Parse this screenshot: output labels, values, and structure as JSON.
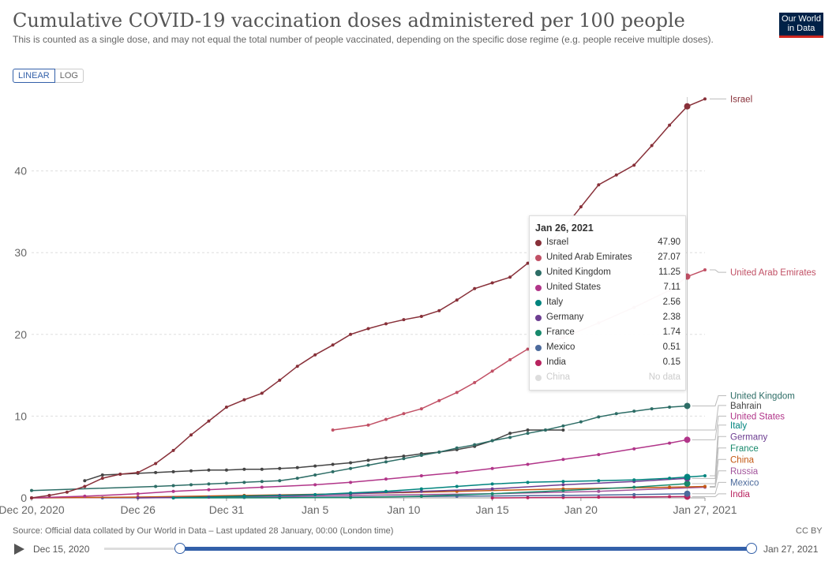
{
  "header": {
    "title": "Cumulative COVID-19 vaccination doses administered per 100 people",
    "subtitle": "This is counted as a single dose, and may not equal the total number of people vaccinated, depending on the specific dose regime (e.g. people receive multiple doses).",
    "logo_line1": "Our World",
    "logo_line2": "in Data"
  },
  "scale_toggle": {
    "linear": "LINEAR",
    "log": "LOG"
  },
  "footer": {
    "source": "Source: Official data collated by Our World in Data – Last updated 28 January, 00:00 (London time)",
    "license": "CC BY"
  },
  "timeline": {
    "start_label": "Dec 15, 2020",
    "end_label": "Jan 27, 2021",
    "range_start_day": 5,
    "range_end_day": 43
  },
  "tooltip": {
    "date": "Jan 26, 2021",
    "rows": [
      {
        "name": "Israel",
        "value": "47.90",
        "color": "#883039"
      },
      {
        "name": "United Arab Emirates",
        "value": "27.07",
        "color": "#c15065"
      },
      {
        "name": "United Kingdom",
        "value": "11.25",
        "color": "#2d6d66"
      },
      {
        "name": "United States",
        "value": "7.11",
        "color": "#b13589"
      },
      {
        "name": "Italy",
        "value": "2.56",
        "color": "#00847e"
      },
      {
        "name": "Germany",
        "value": "2.38",
        "color": "#6d3e91"
      },
      {
        "name": "France",
        "value": "1.74",
        "color": "#18896c"
      },
      {
        "name": "Mexico",
        "value": "0.51",
        "color": "#4c6a9c"
      },
      {
        "name": "India",
        "value": "0.15",
        "color": "#b8235f"
      },
      {
        "name": "China",
        "value": "No data",
        "color": "#dddddd"
      }
    ]
  },
  "chart_data": {
    "type": "line",
    "title": "Cumulative COVID-19 vaccination doses administered per 100 people",
    "x_unit": "days since Dec 20, 2020",
    "xlim": [
      0,
      38
    ],
    "ylim": [
      0,
      50
    ],
    "y_ticks": [
      0,
      10,
      20,
      30,
      40
    ],
    "y_tick_labels": [
      "0",
      "10",
      "20",
      "30",
      "40"
    ],
    "x_ticks": [
      0,
      6,
      11,
      16,
      21,
      26,
      31,
      38
    ],
    "x_tick_labels": [
      "Dec 20, 2020",
      "Dec 26",
      "Dec 31",
      "Jan 5",
      "Jan 10",
      "Jan 15",
      "Jan 20",
      "Jan 27, 2021"
    ],
    "hover_day": 37,
    "grid": true,
    "legend": "right",
    "series": [
      {
        "name": "Israel",
        "color": "#883039",
        "label_y": 48.8,
        "x": [
          0,
          1,
          2,
          3,
          4,
          5,
          6,
          7,
          8,
          9,
          10,
          11,
          12,
          13,
          14,
          15,
          16,
          17,
          18,
          19,
          20,
          21,
          22,
          23,
          24,
          25,
          26,
          27,
          28,
          29,
          30,
          31,
          32,
          33,
          34,
          35,
          36,
          37,
          38
        ],
        "y": [
          0,
          0.3,
          0.7,
          1.4,
          2.4,
          2.9,
          3.1,
          4.2,
          5.8,
          7.7,
          9.4,
          11.1,
          12.0,
          12.8,
          14.4,
          16.1,
          17.5,
          18.7,
          20.0,
          20.7,
          21.3,
          21.8,
          22.2,
          22.9,
          24.2,
          25.6,
          26.3,
          27.0,
          28.7,
          30.6,
          32.9,
          35.6,
          38.3,
          39.5,
          40.7,
          43.1,
          45.6,
          47.9,
          48.8
        ]
      },
      {
        "name": "United Arab Emirates",
        "color": "#c15065",
        "label_y": 27.6,
        "x": [
          17,
          19,
          20,
          21,
          22,
          23,
          24,
          25,
          26,
          27,
          28,
          30,
          32,
          34,
          36,
          37,
          38
        ],
        "y": [
          8.3,
          8.9,
          9.6,
          10.3,
          10.9,
          11.9,
          12.9,
          14.1,
          15.5,
          16.9,
          18.2,
          19.6,
          21.4,
          23.3,
          25.4,
          27.07,
          27.9
        ]
      },
      {
        "name": "United Kingdom",
        "color": "#2d6d66",
        "label_y": 12.5,
        "x": [
          0,
          7,
          8,
          9,
          10,
          11,
          12,
          13,
          14,
          15,
          16,
          17,
          18,
          19,
          20,
          21,
          22,
          23,
          24,
          25,
          26,
          27,
          28,
          29,
          30,
          31,
          32,
          33,
          34,
          35,
          36,
          37
        ],
        "y": [
          0.9,
          1.4,
          1.5,
          1.6,
          1.7,
          1.8,
          1.9,
          2.0,
          2.1,
          2.4,
          2.8,
          3.2,
          3.6,
          4.0,
          4.4,
          4.8,
          5.2,
          5.6,
          6.1,
          6.5,
          7.0,
          7.4,
          7.9,
          8.3,
          8.8,
          9.3,
          9.9,
          10.3,
          10.6,
          10.9,
          11.1,
          11.25
        ]
      },
      {
        "name": "Bahrain",
        "color": "#444444",
        "label_y": 11.3,
        "x": [
          3,
          4,
          5,
          6,
          7,
          8,
          9,
          10,
          11,
          12,
          13,
          14,
          15,
          16,
          17,
          18,
          19,
          20,
          21,
          22,
          23,
          24,
          25,
          26,
          27,
          28,
          29,
          30
        ],
        "y": [
          2.1,
          2.8,
          2.9,
          3.0,
          3.1,
          3.2,
          3.3,
          3.4,
          3.4,
          3.5,
          3.5,
          3.6,
          3.7,
          3.9,
          4.1,
          4.3,
          4.6,
          4.9,
          5.1,
          5.4,
          5.6,
          5.9,
          6.3,
          7.0,
          7.9,
          8.3,
          8.3,
          8.3
        ]
      },
      {
        "name": "United States",
        "color": "#b13589",
        "label_y": 10.0,
        "x": [
          0,
          3,
          6,
          8,
          10,
          13,
          16,
          18,
          20,
          22,
          24,
          26,
          28,
          30,
          32,
          34,
          36,
          37
        ],
        "y": [
          0,
          0.2,
          0.5,
          0.8,
          1.0,
          1.3,
          1.6,
          1.9,
          2.3,
          2.7,
          3.1,
          3.6,
          4.1,
          4.7,
          5.3,
          6.0,
          6.7,
          7.11
        ]
      },
      {
        "name": "Italy",
        "color": "#00847e",
        "label_y": 8.9,
        "x": [
          8,
          12,
          16,
          18,
          20,
          22,
          24,
          26,
          28,
          30,
          32,
          34,
          36,
          37,
          38
        ],
        "y": [
          0,
          0.2,
          0.4,
          0.6,
          0.8,
          1.1,
          1.4,
          1.7,
          1.9,
          2.0,
          2.1,
          2.2,
          2.4,
          2.56,
          2.7
        ]
      },
      {
        "name": "Germany",
        "color": "#6d3e91",
        "label_y": 7.5,
        "x": [
          6,
          10,
          14,
          18,
          22,
          26,
          30,
          34,
          37
        ],
        "y": [
          0,
          0.1,
          0.3,
          0.5,
          0.8,
          1.1,
          1.6,
          2.0,
          2.38
        ]
      },
      {
        "name": "France",
        "color": "#18896c",
        "label_y": 6.1,
        "x": [
          8,
          14,
          18,
          22,
          26,
          30,
          34,
          37
        ],
        "y": [
          0,
          0.01,
          0.05,
          0.2,
          0.5,
          0.9,
          1.3,
          1.74
        ]
      },
      {
        "name": "China",
        "color": "#c35813",
        "label_y": 4.7,
        "x": [
          0,
          6,
          12,
          18,
          24,
          30,
          36,
          38
        ],
        "y": [
          0,
          0.1,
          0.3,
          0.5,
          0.8,
          1.1,
          1.3,
          1.4
        ]
      },
      {
        "name": "Russia",
        "color": "#a2559c",
        "label_y": 3.3,
        "x": [
          0,
          10,
          18,
          26,
          32,
          38
        ],
        "y": [
          0,
          0.1,
          0.3,
          0.5,
          0.8,
          1.3
        ]
      },
      {
        "name": "Mexico",
        "color": "#4c6a9c",
        "label_y": 1.9,
        "x": [
          4,
          12,
          18,
          24,
          30,
          34,
          37
        ],
        "y": [
          0,
          0.05,
          0.1,
          0.2,
          0.3,
          0.4,
          0.51
        ]
      },
      {
        "name": "India",
        "color": "#b8235f",
        "label_y": 0.5,
        "x": [
          26,
          28,
          30,
          32,
          34,
          36,
          37
        ],
        "y": [
          0,
          0.02,
          0.05,
          0.08,
          0.11,
          0.14,
          0.15
        ]
      }
    ]
  }
}
